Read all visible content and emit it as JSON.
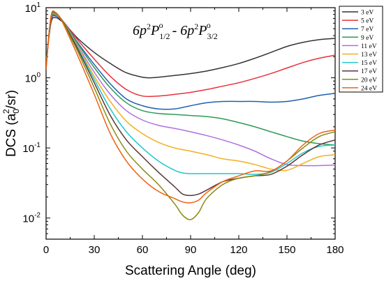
{
  "chart_data": {
    "type": "line",
    "title_parts": {
      "left_n": "6p",
      "left_sup": "2",
      "left_P": "P",
      "left_sub": "1/2",
      "left_o": "o",
      "sep": " - ",
      "right_n": "6p",
      "right_sup": "2",
      "right_P": "P",
      "right_sub": "3/2",
      "right_o": "o"
    },
    "xlabel": "Scattering Angle (deg)",
    "ylabel_parts": {
      "a": "DCS (a",
      "sub": "0",
      "sup": "2",
      "b": "/sr)"
    },
    "xlim": [
      0,
      180
    ],
    "ylim": [
      0.005,
      10
    ],
    "yscale": "log",
    "xticks": [
      "0",
      "30",
      "60",
      "90",
      "120",
      "150",
      "180"
    ],
    "xtick_values": [
      0,
      30,
      60,
      90,
      120,
      150,
      180
    ],
    "yticks": [
      {
        "value": 10,
        "base": "10",
        "exp": "1"
      },
      {
        "value": 1,
        "base": "10",
        "exp": "0"
      },
      {
        "value": 0.1,
        "base": "10",
        "exp": "-1"
      },
      {
        "value": 0.01,
        "base": "10",
        "exp": "-2"
      }
    ],
    "legend_position": "top-right outside",
    "grid": false,
    "series": [
      {
        "name": "3 eV",
        "color": "#333333",
        "x": [
          0,
          3,
          6,
          10,
          15,
          20,
          30,
          40,
          50,
          60,
          65,
          70,
          80,
          90,
          100,
          110,
          120,
          130,
          140,
          150,
          160,
          170,
          180
        ],
        "y": [
          1.6,
          6.0,
          7.2,
          6.3,
          4.8,
          3.6,
          2.3,
          1.6,
          1.18,
          1.02,
          1.0,
          1.02,
          1.08,
          1.15,
          1.25,
          1.4,
          1.6,
          1.9,
          2.3,
          2.8,
          3.2,
          3.5,
          3.65
        ]
      },
      {
        "name": "5 eV",
        "color": "#e8303a",
        "x": [
          0,
          3,
          6,
          10,
          15,
          20,
          30,
          40,
          50,
          60,
          70,
          80,
          90,
          100,
          110,
          120,
          130,
          140,
          150,
          160,
          170,
          180
        ],
        "y": [
          1.6,
          6.4,
          7.6,
          6.6,
          4.8,
          3.4,
          1.85,
          1.05,
          0.68,
          0.55,
          0.55,
          0.58,
          0.62,
          0.68,
          0.76,
          0.85,
          0.98,
          1.15,
          1.38,
          1.65,
          1.9,
          2.1
        ]
      },
      {
        "name": "7 eV",
        "color": "#1f5fb0",
        "x": [
          0,
          3,
          6,
          10,
          15,
          20,
          30,
          40,
          50,
          60,
          70,
          80,
          90,
          100,
          110,
          120,
          130,
          140,
          150,
          160,
          170,
          180
        ],
        "y": [
          1.6,
          6.6,
          7.6,
          6.5,
          4.6,
          3.1,
          1.55,
          0.82,
          0.5,
          0.4,
          0.36,
          0.36,
          0.4,
          0.44,
          0.46,
          0.46,
          0.46,
          0.45,
          0.46,
          0.5,
          0.56,
          0.6
        ]
      },
      {
        "name": "9 eV",
        "color": "#2e9a55",
        "x": [
          0,
          3,
          6,
          10,
          15,
          20,
          30,
          40,
          50,
          60,
          70,
          80,
          90,
          100,
          110,
          120,
          130,
          140,
          150,
          160,
          170,
          180
        ],
        "y": [
          1.6,
          6.8,
          7.8,
          6.6,
          4.6,
          3.0,
          1.4,
          0.72,
          0.44,
          0.34,
          0.31,
          0.3,
          0.29,
          0.28,
          0.26,
          0.23,
          0.2,
          0.17,
          0.145,
          0.125,
          0.115,
          0.11
        ]
      },
      {
        "name": "11 eV",
        "color": "#b06fe0",
        "x": [
          0,
          3,
          6,
          10,
          15,
          20,
          30,
          40,
          50,
          60,
          70,
          80,
          90,
          100,
          110,
          120,
          130,
          140,
          150,
          160,
          170,
          180
        ],
        "y": [
          1.5,
          7.0,
          8.0,
          6.6,
          4.4,
          2.8,
          1.2,
          0.58,
          0.34,
          0.25,
          0.21,
          0.19,
          0.17,
          0.15,
          0.13,
          0.11,
          0.09,
          0.07,
          0.058,
          0.056,
          0.056,
          0.057
        ]
      },
      {
        "name": "13 eV",
        "color": "#f0b020",
        "x": [
          0,
          3,
          6,
          10,
          15,
          20,
          30,
          40,
          50,
          60,
          70,
          80,
          90,
          100,
          110,
          120,
          130,
          140,
          150,
          160,
          170,
          180
        ],
        "y": [
          1.5,
          7.0,
          8.1,
          6.6,
          4.3,
          2.7,
          1.05,
          0.46,
          0.24,
          0.16,
          0.12,
          0.1,
          0.09,
          0.08,
          0.07,
          0.065,
          0.058,
          0.05,
          0.048,
          0.06,
          0.075,
          0.08
        ]
      },
      {
        "name": "15 eV",
        "color": "#22c7cc",
        "x": [
          0,
          3,
          6,
          10,
          15,
          20,
          30,
          40,
          50,
          60,
          70,
          80,
          85,
          90,
          100,
          110,
          120,
          130,
          140,
          150,
          160,
          170,
          180
        ],
        "y": [
          1.5,
          7.1,
          8.2,
          6.6,
          4.2,
          2.6,
          0.95,
          0.36,
          0.17,
          0.1,
          0.065,
          0.048,
          0.044,
          0.043,
          0.043,
          0.043,
          0.043,
          0.042,
          0.045,
          0.06,
          0.085,
          0.105,
          0.11
        ]
      },
      {
        "name": "17 eV",
        "color": "#5a3535",
        "x": [
          0,
          3,
          6,
          10,
          15,
          20,
          30,
          40,
          50,
          60,
          70,
          80,
          85,
          90,
          95,
          100,
          110,
          120,
          130,
          140,
          150,
          160,
          170,
          180
        ],
        "y": [
          1.4,
          7.2,
          8.3,
          6.6,
          4.1,
          2.5,
          0.85,
          0.29,
          0.13,
          0.075,
          0.045,
          0.028,
          0.022,
          0.021,
          0.022,
          0.025,
          0.033,
          0.037,
          0.04,
          0.042,
          0.055,
          0.08,
          0.11,
          0.13
        ]
      },
      {
        "name": "20 eV",
        "color": "#8a8a10",
        "x": [
          0,
          3,
          6,
          10,
          15,
          20,
          30,
          40,
          50,
          60,
          70,
          80,
          85,
          90,
          95,
          100,
          110,
          120,
          130,
          140,
          150,
          160,
          170,
          180
        ],
        "y": [
          1.4,
          7.3,
          8.4,
          6.5,
          3.9,
          2.3,
          0.72,
          0.22,
          0.09,
          0.05,
          0.03,
          0.016,
          0.011,
          0.0095,
          0.012,
          0.019,
          0.03,
          0.037,
          0.04,
          0.046,
          0.065,
          0.1,
          0.145,
          0.17
        ]
      },
      {
        "name": "24 eV",
        "color": "#f06010",
        "x": [
          0,
          3,
          6,
          10,
          15,
          20,
          30,
          40,
          50,
          60,
          70,
          80,
          85,
          90,
          95,
          100,
          110,
          120,
          130,
          140,
          150,
          160,
          170,
          180
        ],
        "y": [
          1.3,
          7.4,
          8.5,
          6.3,
          3.6,
          2.0,
          0.58,
          0.16,
          0.065,
          0.036,
          0.024,
          0.019,
          0.017,
          0.0165,
          0.018,
          0.023,
          0.033,
          0.04,
          0.047,
          0.047,
          0.065,
          0.11,
          0.16,
          0.18
        ]
      }
    ]
  }
}
